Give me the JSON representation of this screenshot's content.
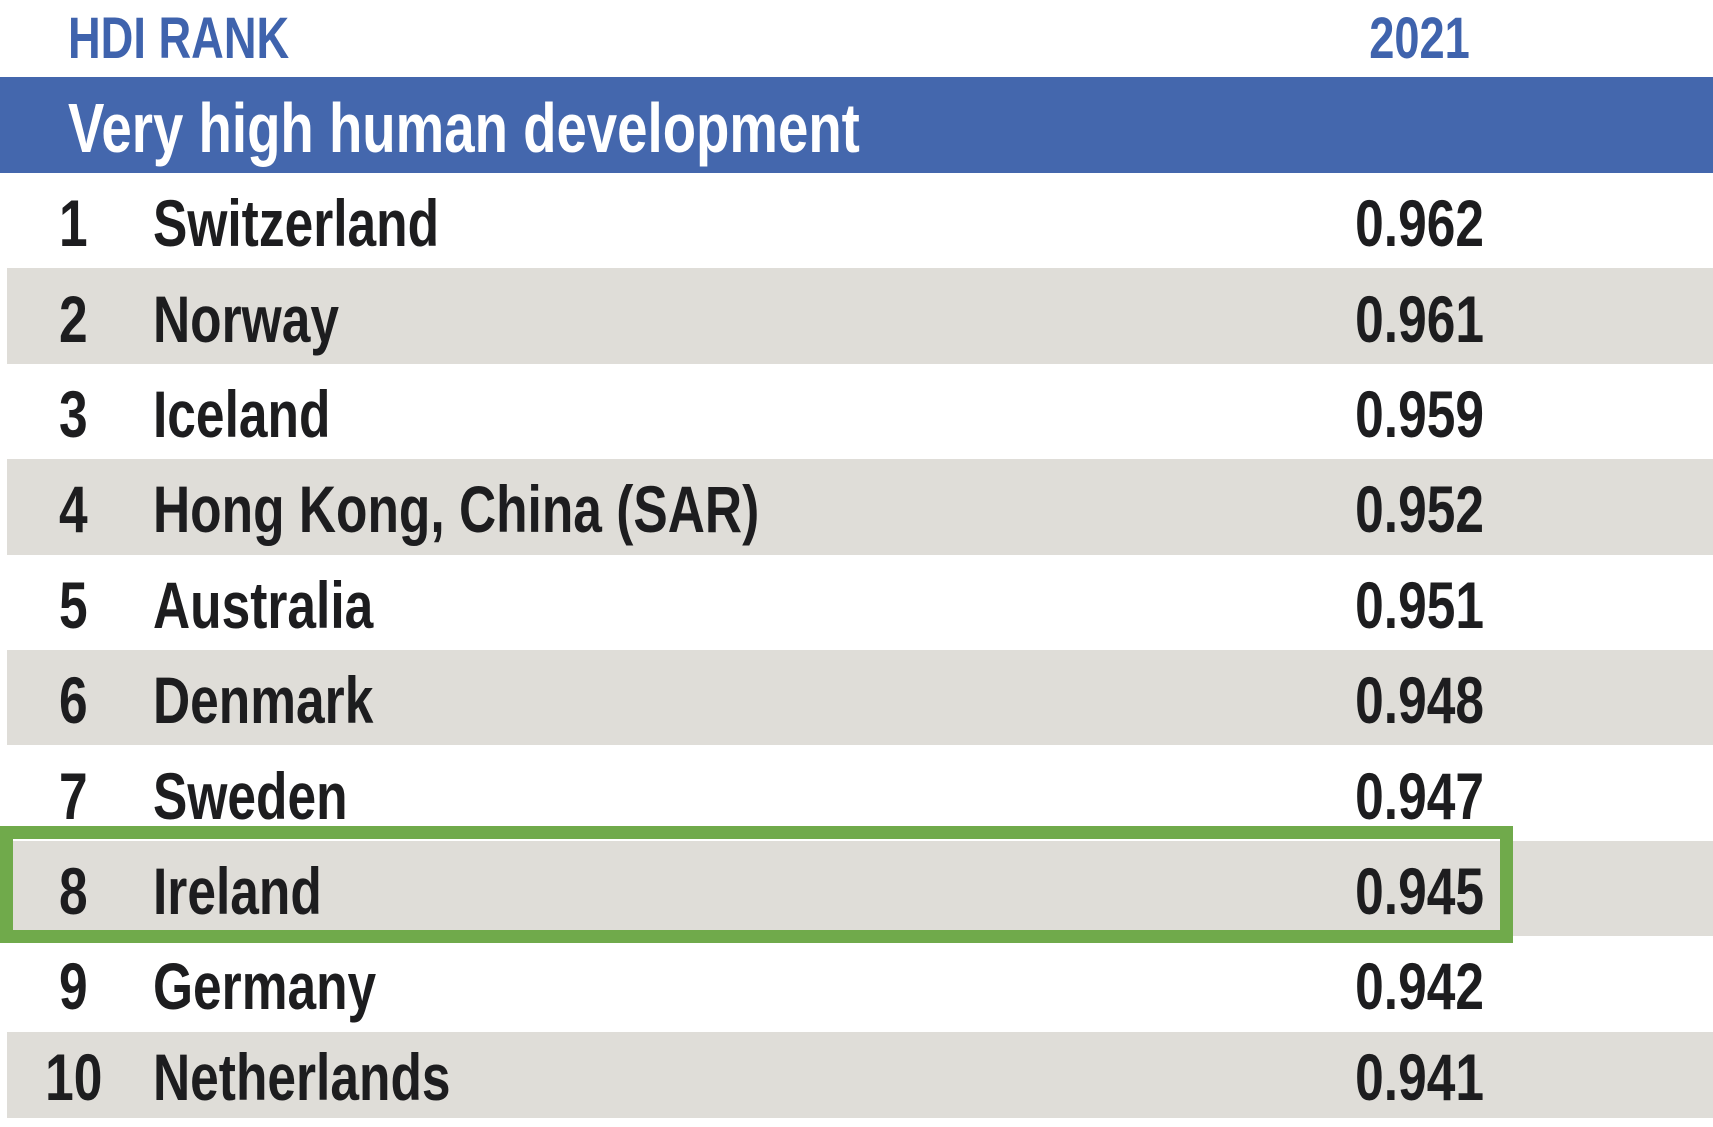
{
  "header": {
    "rank_column_label": "HDI RANK",
    "year_column_label": "2021"
  },
  "section_banner": {
    "title": "Very high human development"
  },
  "table": {
    "rows": [
      {
        "rank": "1",
        "country": "Switzerland",
        "value_2021": "0.962"
      },
      {
        "rank": "2",
        "country": "Norway",
        "value_2021": "0.961"
      },
      {
        "rank": "3",
        "country": "Iceland",
        "value_2021": "0.959"
      },
      {
        "rank": "4",
        "country": "Hong Kong, China (SAR)",
        "value_2021": "0.952"
      },
      {
        "rank": "5",
        "country": "Australia",
        "value_2021": "0.951"
      },
      {
        "rank": "6",
        "country": "Denmark",
        "value_2021": "0.948"
      },
      {
        "rank": "7",
        "country": "Sweden",
        "value_2021": "0.947"
      },
      {
        "rank": "8",
        "country": "Ireland",
        "value_2021": "0.945",
        "highlighted": true
      },
      {
        "rank": "9",
        "country": "Germany",
        "value_2021": "0.942"
      },
      {
        "rank": "10",
        "country": "Netherlands",
        "value_2021": "0.941"
      }
    ],
    "highlighted_row_country": "Ireland"
  },
  "colors": {
    "banner_background": "#4467ad",
    "header_text": "#3f63ad",
    "alternate_row_background": "#dfddd8",
    "highlight_border": "#70aa4b",
    "body_text": "#1d1d1f"
  }
}
